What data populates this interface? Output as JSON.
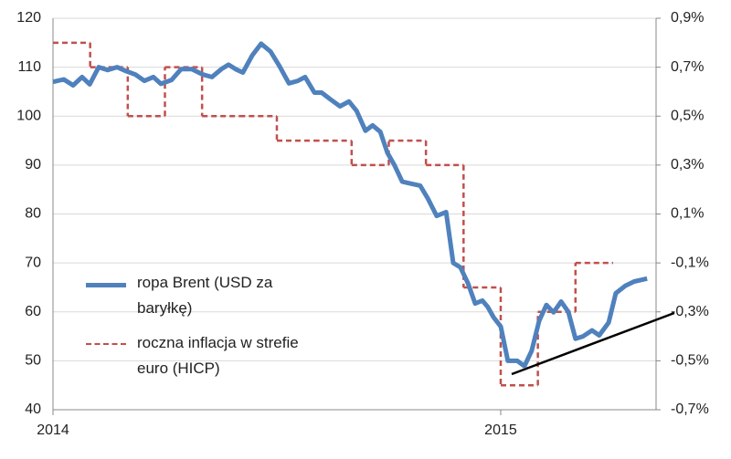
{
  "chart_data": {
    "type": "line",
    "xlim": [
      2014,
      2015.347
    ],
    "xticks": [
      2014,
      2015
    ],
    "ylim": [
      40,
      120
    ],
    "yticks": [
      40,
      50,
      60,
      70,
      80,
      90,
      100,
      110,
      120
    ],
    "y2lim": [
      -0.7,
      0.9
    ],
    "y2ticks": [
      {
        "value": -0.7,
        "label": "-0,7%"
      },
      {
        "value": -0.5,
        "label": "-0,5%"
      },
      {
        "value": -0.3,
        "label": "-0,3%"
      },
      {
        "value": -0.1,
        "label": "-0,1%"
      },
      {
        "value": 0.1,
        "label": "0,1%"
      },
      {
        "value": 0.3,
        "label": "0,3%"
      },
      {
        "value": 0.5,
        "label": "0,5%"
      },
      {
        "value": 0.7,
        "label": "0,7%"
      },
      {
        "value": 0.9,
        "label": "0,9%"
      }
    ],
    "grid": true,
    "legend": "left",
    "series": [
      {
        "name": "ropa Brent (USD za baryłkę)",
        "color": "#4f81bd",
        "axis": "y",
        "line_style": "solid",
        "x": [
          2014.0,
          2014.024,
          2014.045,
          2014.065,
          2014.082,
          2014.102,
          2014.122,
          2014.143,
          2014.163,
          2014.184,
          2014.204,
          2014.224,
          2014.241,
          2014.265,
          2014.286,
          2014.31,
          2014.335,
          2014.355,
          2014.376,
          2014.392,
          2014.408,
          2014.424,
          2014.445,
          2014.465,
          2014.486,
          2014.506,
          2014.527,
          2014.547,
          2014.563,
          2014.584,
          2014.6,
          2014.62,
          2014.641,
          2014.661,
          2014.678,
          2014.698,
          2014.714,
          2014.731,
          2014.747,
          2014.763,
          2014.78,
          2014.8,
          2014.82,
          2014.837,
          2014.857,
          2014.878,
          2014.894,
          2014.91,
          2014.927,
          2014.943,
          2014.959,
          2014.971,
          2014.984,
          2015.0,
          2015.016,
          2015.037,
          2015.053,
          2015.069,
          2015.086,
          2015.102,
          2015.118,
          2015.135,
          2015.151,
          2015.167,
          2015.184,
          2015.204,
          2015.22,
          2015.241,
          2015.257,
          2015.278,
          2015.298,
          2015.327
        ],
        "values": [
          107,
          107.5,
          106.3,
          108,
          106.5,
          110,
          109.4,
          110,
          109.2,
          108.5,
          107.2,
          108,
          106.6,
          107.4,
          109.6,
          109.6,
          108.5,
          108,
          109.6,
          110.5,
          109.6,
          108.9,
          112.4,
          114.8,
          113.2,
          110.2,
          106.7,
          107.2,
          108,
          104.8,
          104.8,
          103.4,
          102,
          103,
          101.1,
          97,
          98.1,
          96.8,
          92.5,
          89.9,
          86.6,
          86.2,
          85.8,
          83.2,
          79.6,
          80.4,
          70,
          69.1,
          65.8,
          61.7,
          62.3,
          61,
          58.9,
          57,
          50,
          50,
          48.9,
          52,
          58.2,
          61.4,
          59.9,
          62.1,
          60,
          54.5,
          55,
          56.2,
          55.2,
          57.8,
          63.8,
          65.3,
          66.2,
          66.8
        ]
      },
      {
        "name": "roczna inflacja w strefie euro (HICP)",
        "color": "#c0504d",
        "axis": "y2",
        "line_style": "dashed",
        "step": true,
        "x": [
          2014.0,
          2014.083,
          2014.167,
          2014.25,
          2014.333,
          2014.417,
          2014.5,
          2014.583,
          2014.667,
          2014.75,
          2014.833,
          2014.917,
          2015.0,
          2015.083,
          2015.167
        ],
        "values": [
          0.8,
          0.7,
          0.5,
          0.7,
          0.5,
          0.5,
          0.4,
          0.4,
          0.3,
          0.4,
          0.3,
          -0.2,
          -0.6,
          -0.3,
          -0.1
        ]
      }
    ]
  }
}
